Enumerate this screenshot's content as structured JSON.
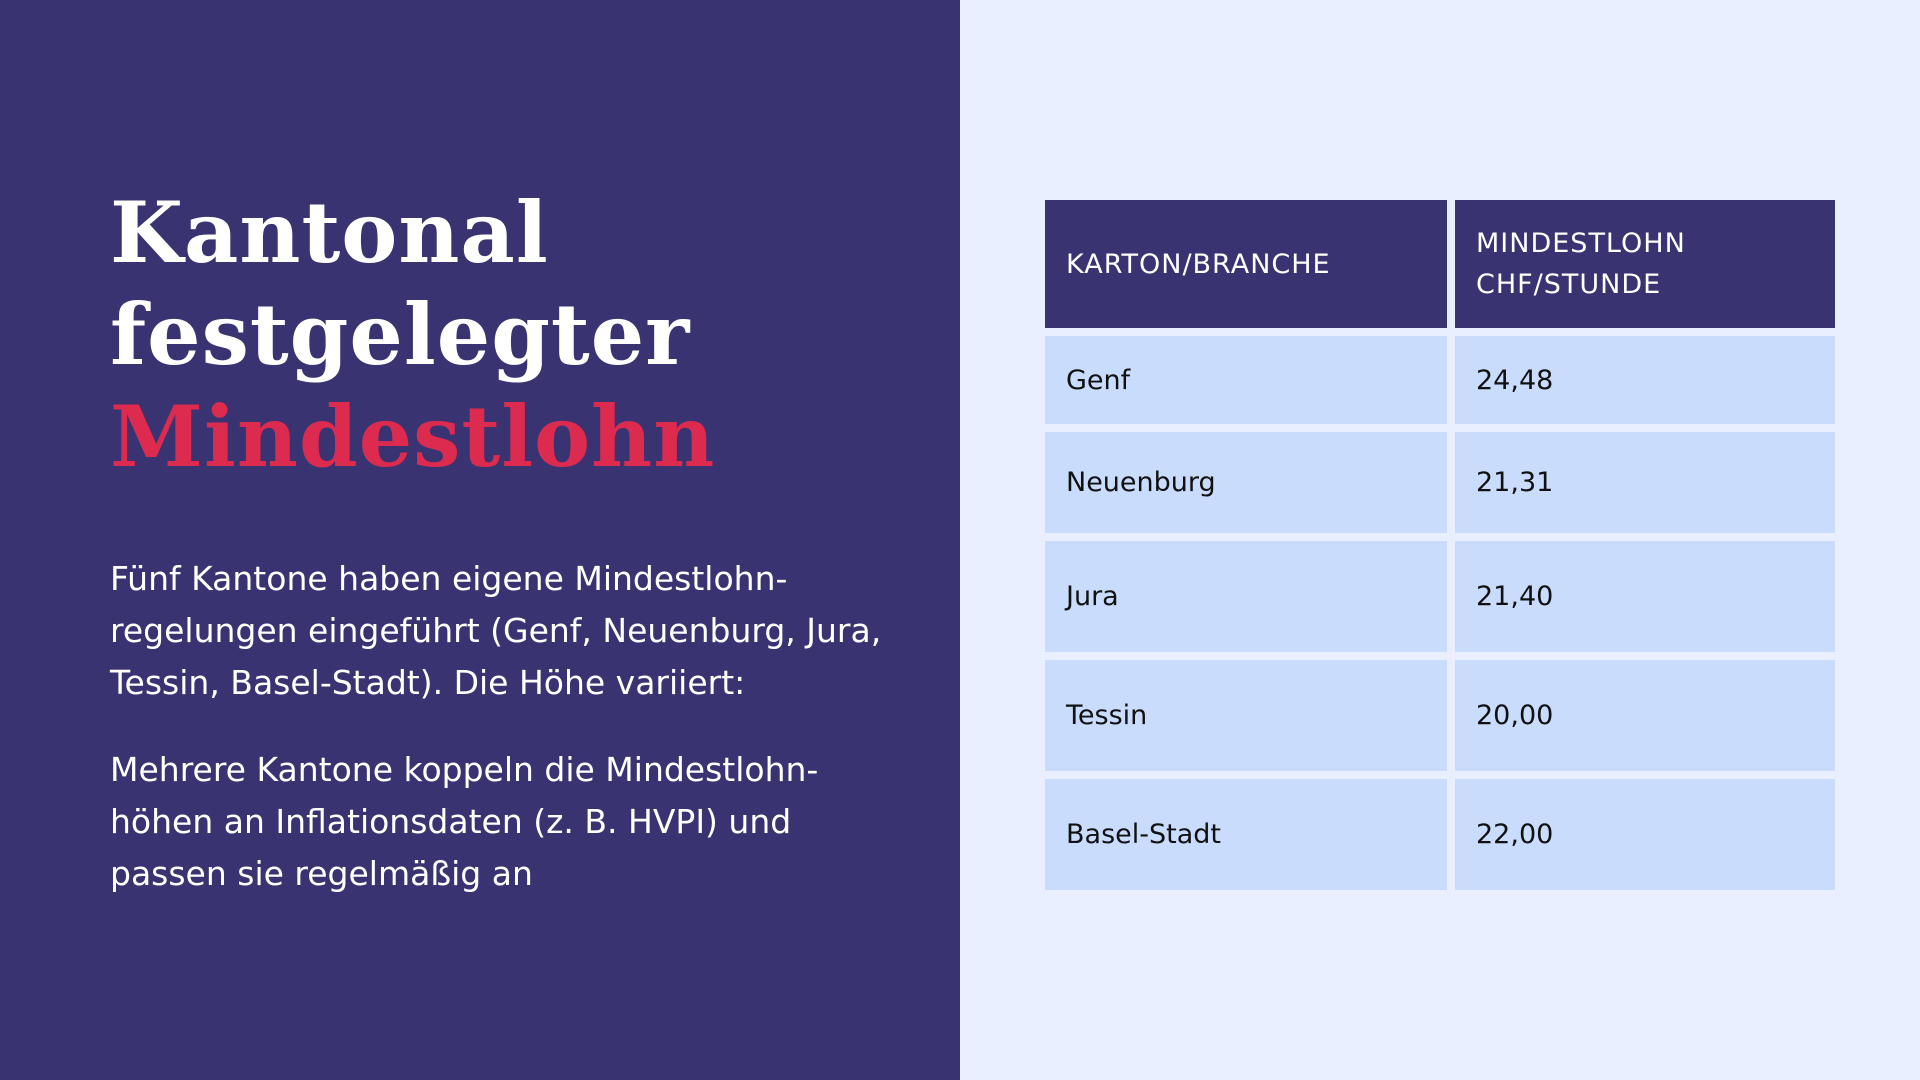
{
  "title": {
    "line1": "Kantonal",
    "line2": "festgelegter",
    "line3": "Mindestlohn"
  },
  "paragraphs": {
    "p1": "Fünf Kantone haben eigene Mindestlohn-regelungen eingeführt (Genf, Neuenburg, Jura, Tessin, Basel-Stadt). Die Höhe variiert:",
    "p2": "Mehrere Kantone koppeln die Mindestlohn-höhen an Inflationsdaten (z. B. HVPI) und passen sie regelmäßig an"
  },
  "table": {
    "headers": [
      "KARTON/BRANCHE",
      "MINDESTLOHN CHF/STUNDE"
    ],
    "rows": [
      {
        "canton": "Genf",
        "wage": "24,48"
      },
      {
        "canton": "Neuenburg",
        "wage": "21,31"
      },
      {
        "canton": "Jura",
        "wage": "21,40"
      },
      {
        "canton": "Tessin",
        "wage": "20,00"
      },
      {
        "canton": "Basel-Stadt",
        "wage": "22,00"
      }
    ]
  },
  "colors": {
    "panel_dark": "#3a3372",
    "panel_light": "#e9efff",
    "accent": "#dc2b4f",
    "cell_fill": "#c9dcfc"
  }
}
